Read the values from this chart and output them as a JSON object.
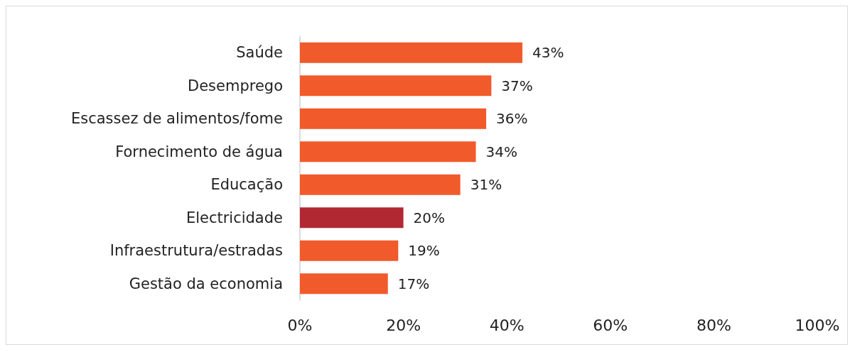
{
  "chart_data": {
    "type": "bar",
    "orientation": "horizontal",
    "categories": [
      "Saúde",
      "Desemprego",
      "Escassez de alimentos/fome",
      "Fornecimento de água",
      "Educação",
      "Electricidade",
      "Infraestrutura/estradas",
      "Gestão da economia"
    ],
    "values": [
      43,
      37,
      36,
      34,
      31,
      20,
      19,
      17
    ],
    "colors": [
      "#f15a2b",
      "#f15a2b",
      "#f15a2b",
      "#f15a2b",
      "#f15a2b",
      "#b22832",
      "#f15a2b",
      "#f15a2b"
    ],
    "value_labels": [
      "43%",
      "37%",
      "36%",
      "34%",
      "31%",
      "20%",
      "19%",
      "17%"
    ],
    "xlim": [
      0,
      100
    ],
    "xticks": [
      {
        "value": 0,
        "label": "0%"
      },
      {
        "value": 20,
        "label": "20%"
      },
      {
        "value": 40,
        "label": "40%"
      },
      {
        "value": 60,
        "label": "60%"
      },
      {
        "value": 80,
        "label": "80%"
      },
      {
        "value": 100,
        "label": "100%"
      }
    ],
    "grid": false
  }
}
